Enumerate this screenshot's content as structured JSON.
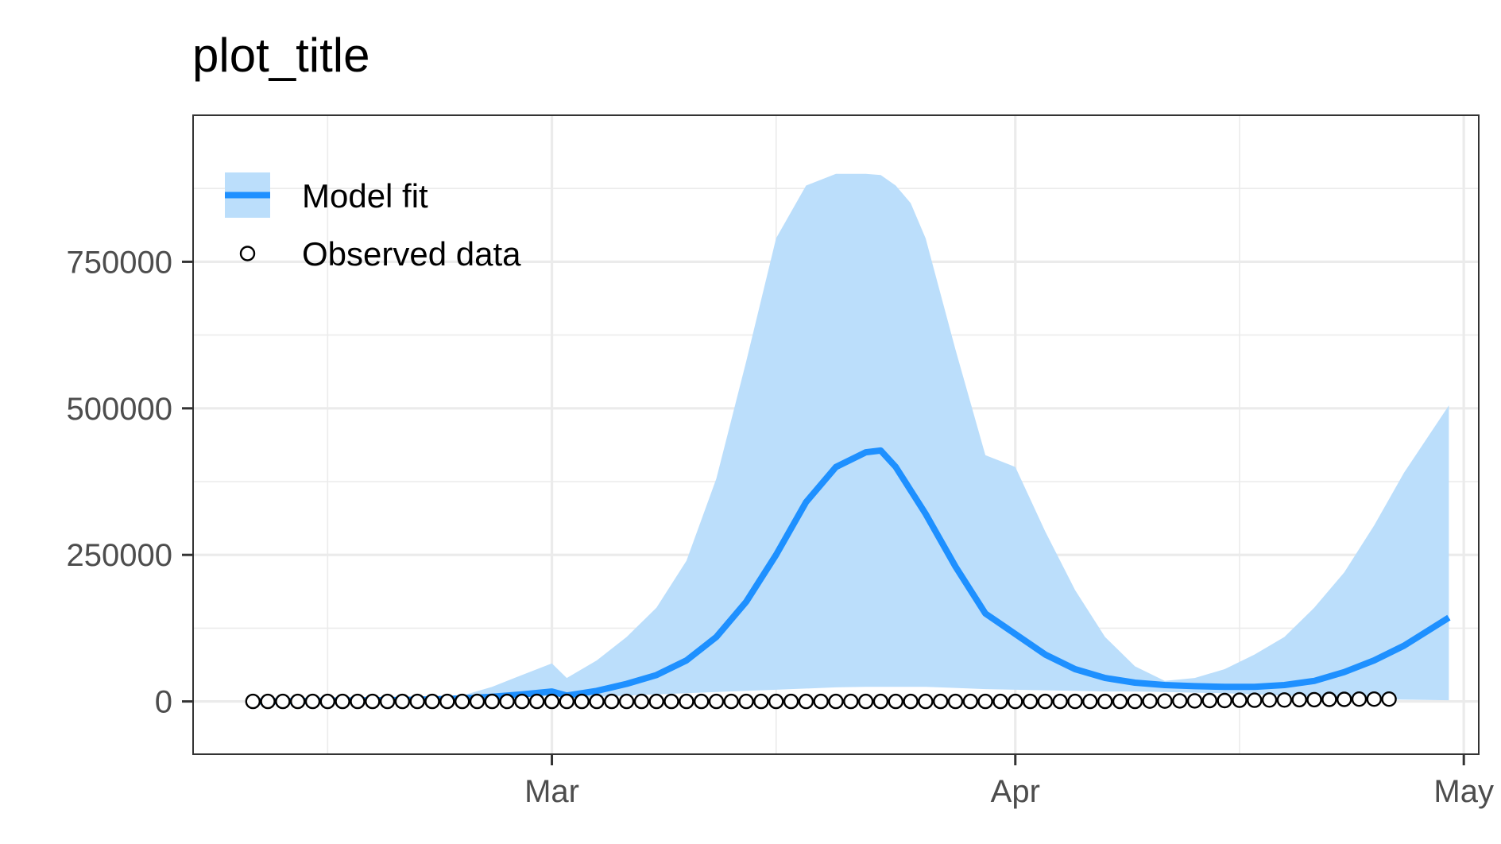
{
  "chart_data": {
    "type": "line",
    "title": "plot_title",
    "xlabel": "",
    "ylabel": "",
    "x_axis": {
      "type": "date",
      "range": [
        "2020-02-06",
        "2020-05-02"
      ],
      "major_ticks": [
        {
          "date": "2020-03-01",
          "label": "Mar"
        },
        {
          "date": "2020-04-01",
          "label": "Apr"
        },
        {
          "date": "2020-05-01",
          "label": "May"
        }
      ],
      "minor_ticks": [
        "2020-02-15",
        "2020-03-16",
        "2020-04-16"
      ]
    },
    "y_axis": {
      "range": [
        -90000,
        1000000
      ],
      "major_ticks": [
        0,
        250000,
        500000,
        750000
      ],
      "tick_labels": [
        "0",
        "250000",
        "500000",
        "750000"
      ],
      "minor_ticks": [
        125000,
        375000,
        625000,
        875000
      ]
    },
    "grid": true,
    "legend": {
      "placement": "top-left",
      "entries": [
        {
          "label": "Model fit",
          "key": "ribbon-line"
        },
        {
          "label": "Observed data",
          "key": "open-circle"
        }
      ]
    },
    "colors": {
      "fit_line": "#1e90ff",
      "fit_band": "#bbdefb",
      "points": "#000000"
    },
    "series": [
      {
        "name": "Model fit",
        "kind": "line-with-band",
        "x": [
          "2020-02-10",
          "2020-02-12",
          "2020-02-14",
          "2020-02-16",
          "2020-02-18",
          "2020-02-20",
          "2020-02-22",
          "2020-02-24",
          "2020-02-26",
          "2020-02-28",
          "2020-03-01",
          "2020-03-02",
          "2020-03-04",
          "2020-03-06",
          "2020-03-08",
          "2020-03-10",
          "2020-03-12",
          "2020-03-14",
          "2020-03-16",
          "2020-03-18",
          "2020-03-20",
          "2020-03-22",
          "2020-03-23",
          "2020-03-24",
          "2020-03-25",
          "2020-03-26",
          "2020-03-28",
          "2020-03-30",
          "2020-04-01",
          "2020-04-03",
          "2020-04-05",
          "2020-04-07",
          "2020-04-09",
          "2020-04-11",
          "2020-04-13",
          "2020-04-15",
          "2020-04-17",
          "2020-04-19",
          "2020-04-21",
          "2020-04-23",
          "2020-04-25",
          "2020-04-27",
          "2020-04-30"
        ],
        "y": [
          0,
          500,
          1000,
          1500,
          2000,
          2500,
          3500,
          5000,
          8000,
          12000,
          17000,
          10000,
          18000,
          30000,
          45000,
          70000,
          110000,
          170000,
          250000,
          340000,
          400000,
          425000,
          428000,
          400000,
          360000,
          320000,
          230000,
          150000,
          115000,
          80000,
          55000,
          40000,
          32000,
          28000,
          26000,
          25000,
          25000,
          28000,
          35000,
          50000,
          70000,
          95000,
          143000
        ],
        "lower": [
          0,
          500,
          1000,
          1500,
          2000,
          2500,
          3000,
          4000,
          5000,
          7000,
          9000,
          6000,
          8000,
          10000,
          12000,
          14000,
          16000,
          18000,
          20000,
          22000,
          24000,
          25000,
          25000,
          25000,
          25000,
          25000,
          23000,
          21000,
          20000,
          19000,
          18000,
          17000,
          17000,
          16000,
          15000,
          14000,
          12000,
          10000,
          8000,
          6000,
          4000,
          3000,
          2000
        ],
        "upper": [
          0,
          500,
          1000,
          1500,
          2000,
          3000,
          5000,
          10000,
          25000,
          45000,
          65000,
          40000,
          70000,
          110000,
          160000,
          240000,
          380000,
          580000,
          790000,
          880000,
          900000,
          900000,
          898000,
          880000,
          850000,
          790000,
          600000,
          420000,
          400000,
          290000,
          190000,
          110000,
          60000,
          35000,
          40000,
          55000,
          80000,
          110000,
          160000,
          220000,
          300000,
          390000,
          505000
        ]
      },
      {
        "name": "Observed data",
        "kind": "scatter",
        "x_start": "2020-02-10",
        "x_step_days": 1,
        "y": [
          0,
          0,
          0,
          0,
          0,
          0,
          0,
          0,
          0,
          0,
          0,
          0,
          0,
          0,
          0,
          0,
          0,
          0,
          0,
          0,
          0,
          0,
          0,
          0,
          0,
          0,
          0,
          0,
          0,
          0,
          0,
          0,
          0,
          0,
          0,
          0,
          0,
          0,
          0,
          0,
          0,
          0,
          0,
          0,
          0,
          0,
          0,
          0,
          0,
          0,
          0,
          0,
          0,
          0,
          0,
          0,
          0,
          0,
          0,
          0,
          500,
          500,
          1000,
          1000,
          1500,
          1500,
          2000,
          2000,
          2500,
          2500,
          3000,
          3000,
          3500,
          3500,
          4000,
          4000,
          4000
        ]
      }
    ]
  }
}
